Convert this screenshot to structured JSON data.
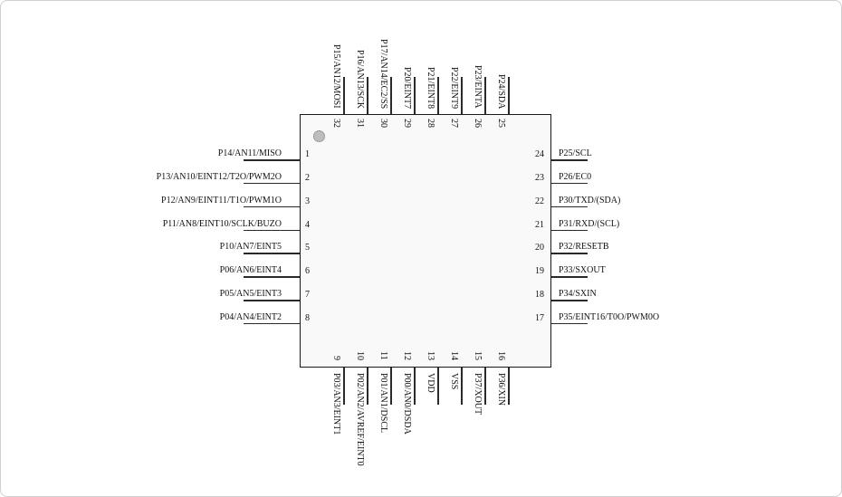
{
  "figure": {
    "kind": "ic-pinout-diagram",
    "pin_count": 32,
    "colors": {
      "lead_line": "#2a2a2a",
      "chip_fill": "#f9f9f9",
      "chip_border": "#1a1a1a",
      "pin1_dot": "#bdbdbd"
    }
  },
  "pins": {
    "left": [
      {
        "num": "1",
        "label": "P14/AN11/MISO"
      },
      {
        "num": "2",
        "label": "P13/AN10/EINT12/T2O/PWM2O"
      },
      {
        "num": "3",
        "label": "P12/AN9/EINT11/T1O/PWM1O"
      },
      {
        "num": "4",
        "label": "P11/AN8/EINT10/SCLK/BUZO"
      },
      {
        "num": "5",
        "label": "P10/AN7/EINT5"
      },
      {
        "num": "6",
        "label": "P06/AN6/EINT4"
      },
      {
        "num": "7",
        "label": "P05/AN5/EINT3"
      },
      {
        "num": "8",
        "label": "P04/AN4/EINT2"
      }
    ],
    "right": [
      {
        "num": "24",
        "label": "P25/SCL"
      },
      {
        "num": "23",
        "label": "P26/EC0"
      },
      {
        "num": "22",
        "label": "P30/TXD/(SDA)"
      },
      {
        "num": "21",
        "label": "P31/RXD/(SCL)"
      },
      {
        "num": "20",
        "label": "P32/RESETB"
      },
      {
        "num": "19",
        "label": "P33/SXOUT"
      },
      {
        "num": "18",
        "label": "P34/SXIN"
      },
      {
        "num": "17",
        "label": "P35/EINT16/T0O/PWM0O"
      }
    ],
    "top": [
      {
        "num": "32",
        "label": "P15/AN12/MOSI"
      },
      {
        "num": "31",
        "label": "P16/AN13/SCK"
      },
      {
        "num": "30",
        "label": "P17/AN14/EC2/SS"
      },
      {
        "num": "29",
        "label": "P20/EINT7"
      },
      {
        "num": "28",
        "label": "P21/EINT8"
      },
      {
        "num": "27",
        "label": "P22/EINT9"
      },
      {
        "num": "26",
        "label": "P23/EINTA"
      },
      {
        "num": "25",
        "label": "P24/SDA"
      }
    ],
    "bottom": [
      {
        "num": "9",
        "label": "P03/AN3/EINT1"
      },
      {
        "num": "10",
        "label": "P02/AN2/AVREF/EINT0"
      },
      {
        "num": "11",
        "label": "P01/AN1/DSCL"
      },
      {
        "num": "12",
        "label": "P00/AN0/DSDA"
      },
      {
        "num": "13",
        "label": "VDD"
      },
      {
        "num": "14",
        "label": "VSS"
      },
      {
        "num": "15",
        "label": "P37/XOUT"
      },
      {
        "num": "16",
        "label": "P36/XIN"
      }
    ]
  }
}
